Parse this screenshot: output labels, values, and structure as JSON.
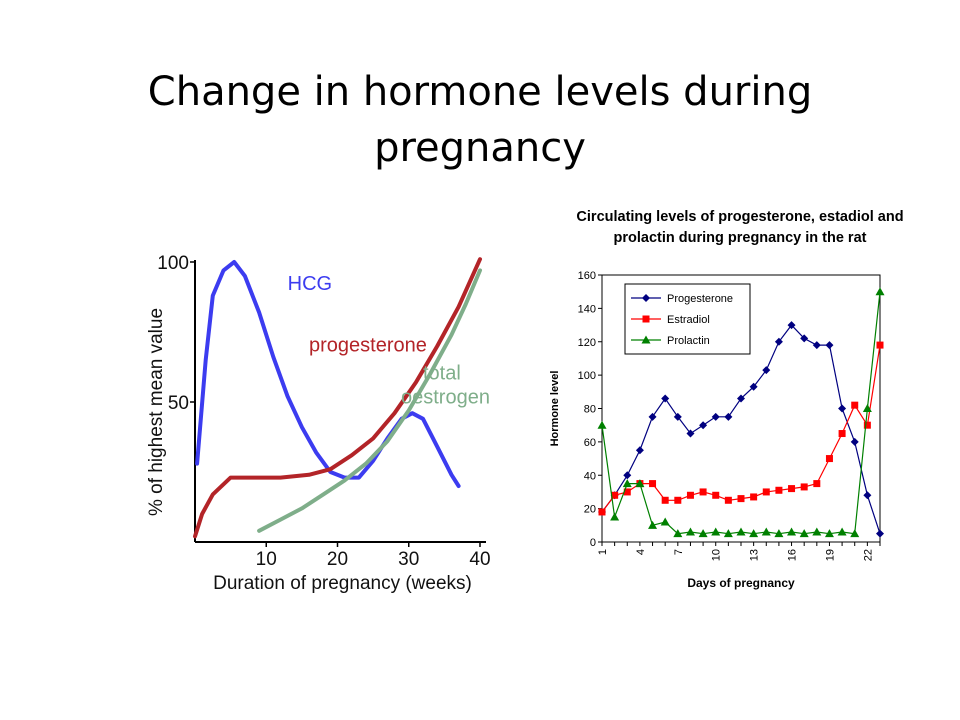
{
  "slide": {
    "title": "Change in hormone levels during pregnancy"
  },
  "chart_data": [
    {
      "type": "line",
      "xlabel": "Duration of pregnancy (weeks)",
      "ylabel": "% of highest mean value",
      "xlim": [
        0,
        40
      ],
      "ylim": [
        0,
        100
      ],
      "x_ticks": [
        "10",
        "20",
        "30",
        "40"
      ],
      "y_ticks": [
        "50",
        "100"
      ],
      "grid": false,
      "series": [
        {
          "name": "HCG",
          "color": "#3c3cf0",
          "points": [
            [
              0.3,
              28
            ],
            [
              1.5,
              65
            ],
            [
              2.5,
              88
            ],
            [
              4,
              97
            ],
            [
              5.5,
              100
            ],
            [
              7,
              95
            ],
            [
              9,
              82
            ],
            [
              11,
              66
            ],
            [
              13,
              52
            ],
            [
              15,
              41
            ],
            [
              17,
              32
            ],
            [
              19,
              25
            ],
            [
              21,
              23
            ],
            [
              23,
              23
            ],
            [
              25,
              29
            ],
            [
              27,
              37
            ],
            [
              29,
              44
            ],
            [
              30.5,
              46
            ],
            [
              32,
              44
            ],
            [
              34,
              34
            ],
            [
              36,
              24
            ],
            [
              37,
              20
            ]
          ]
        },
        {
          "name": "progesterone",
          "color": "#b32428",
          "points": [
            [
              0,
              2
            ],
            [
              1,
              10
            ],
            [
              2.5,
              17
            ],
            [
              5,
              23
            ],
            [
              8,
              23
            ],
            [
              12,
              23
            ],
            [
              16,
              24
            ],
            [
              19,
              26
            ],
            [
              22,
              31
            ],
            [
              25,
              37
            ],
            [
              28,
              46
            ],
            [
              31,
              57
            ],
            [
              34,
              70
            ],
            [
              37,
              84
            ],
            [
              40,
              101
            ]
          ]
        },
        {
          "name": "total oestrogen",
          "color": "#7fae8a",
          "points": [
            [
              9,
              4
            ],
            [
              12,
              8
            ],
            [
              15,
              12
            ],
            [
              18,
              17
            ],
            [
              21,
              22
            ],
            [
              24,
              28
            ],
            [
              27,
              36
            ],
            [
              30,
              47
            ],
            [
              33,
              60
            ],
            [
              36,
              74
            ],
            [
              38,
              85
            ],
            [
              40,
              97
            ]
          ]
        }
      ]
    },
    {
      "type": "line",
      "title": "Circulating levels of progesterone, estadiol and prolactin during pregnancy in the rat",
      "xlabel": "Days of pregnancy",
      "ylabel": "Hormone level",
      "categories": [
        1,
        2,
        3,
        4,
        5,
        6,
        7,
        8,
        9,
        10,
        11,
        12,
        13,
        14,
        15,
        16,
        17,
        18,
        19,
        20,
        21,
        22,
        23
      ],
      "x_tick_labels": [
        "1",
        "4",
        "7",
        "10",
        "13",
        "16",
        "19",
        "22"
      ],
      "ylim": [
        0,
        160
      ],
      "y_ticks": [
        0,
        20,
        40,
        60,
        80,
        100,
        120,
        140,
        160
      ],
      "legend": "top-left",
      "grid": false,
      "series": [
        {
          "name": "Progesterone",
          "color": "#000080",
          "marker": "diamond",
          "values": [
            18,
            28,
            40,
            55,
            75,
            86,
            75,
            65,
            70,
            75,
            75,
            86,
            93,
            103,
            120,
            130,
            122,
            118,
            118,
            80,
            60,
            28,
            5
          ]
        },
        {
          "name": "Estradiol",
          "color": "#ff0000",
          "marker": "square",
          "values": [
            18,
            28,
            30,
            35,
            35,
            25,
            25,
            28,
            30,
            28,
            25,
            26,
            27,
            30,
            31,
            32,
            33,
            35,
            50,
            65,
            82,
            70,
            118
          ]
        },
        {
          "name": "Prolactin",
          "color": "#008000",
          "marker": "triangle",
          "values": [
            70,
            15,
            35,
            35,
            10,
            12,
            5,
            6,
            5,
            6,
            5,
            6,
            5,
            6,
            5,
            6,
            5,
            6,
            5,
            6,
            5,
            80,
            150
          ]
        }
      ]
    }
  ]
}
